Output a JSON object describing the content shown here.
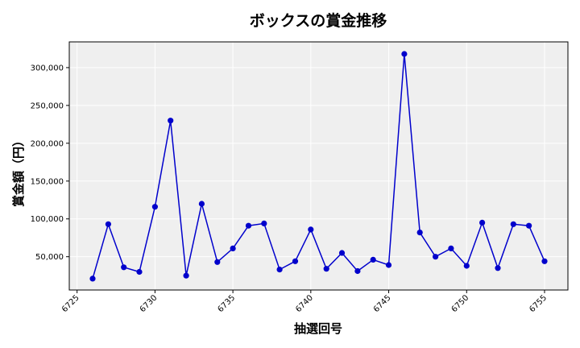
{
  "chart_data": {
    "type": "line",
    "title": "ボックスの賞金推移",
    "xlabel": "抽選回号",
    "ylabel": "賞金額（円）",
    "x": [
      6726,
      6727,
      6728,
      6729,
      6730,
      6731,
      6732,
      6733,
      6734,
      6735,
      6736,
      6737,
      6738,
      6739,
      6740,
      6741,
      6742,
      6743,
      6744,
      6745,
      6746,
      6747,
      6748,
      6749,
      6750,
      6751,
      6752,
      6753,
      6754,
      6755
    ],
    "series": [
      {
        "values": [
          21000,
          93000,
          36000,
          30000,
          116000,
          230000,
          25000,
          120000,
          43000,
          61000,
          91000,
          94000,
          33000,
          44000,
          86000,
          34000,
          55000,
          31000,
          46000,
          39000,
          318000,
          82000,
          50000,
          61000,
          38000,
          95000,
          35000,
          93000,
          91000,
          44000
        ],
        "color": "#0000cc"
      }
    ],
    "xlim": [
      6724.5,
      6756.5
    ],
    "ylim": [
      6000,
      334000
    ],
    "xticks": [
      6725,
      6730,
      6735,
      6740,
      6745,
      6750,
      6755
    ],
    "yticks": [
      50000,
      100000,
      150000,
      200000,
      250000,
      300000
    ],
    "ytick_labels": [
      "50,000",
      "100,000",
      "150,000",
      "200,000",
      "250,000",
      "300,000"
    ],
    "grid": true,
    "plot_background": "#efefef",
    "grid_color": "#ffffff"
  }
}
